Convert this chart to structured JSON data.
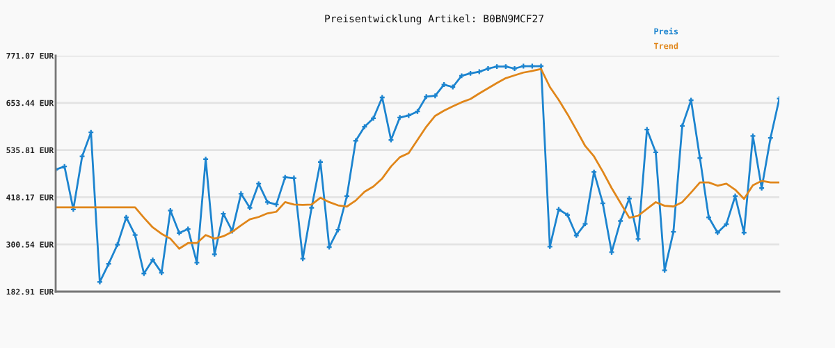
{
  "chart_data": {
    "type": "line",
    "title": "Preisentwicklung Artikel: B0BN9MCF27",
    "categories": [
      null,
      null,
      null,
      null,
      null,
      null,
      null,
      null,
      null,
      null,
      null,
      null,
      null,
      null,
      null,
      null,
      null,
      null,
      null,
      null,
      null,
      null,
      null,
      null,
      null,
      null,
      null,
      null,
      null,
      null,
      null,
      null,
      null,
      null,
      null,
      null,
      null,
      null,
      null,
      null,
      null,
      null,
      null,
      null,
      null,
      null,
      null,
      null,
      null,
      null,
      null,
      null,
      null,
      null,
      null,
      null,
      null,
      null,
      null,
      null,
      null,
      null,
      null,
      null,
      null,
      null,
      null,
      null,
      null,
      null,
      null,
      null,
      null,
      null,
      null,
      null,
      null,
      null,
      null,
      null,
      null,
      null,
      null
    ],
    "series": [
      {
        "name": "Preis",
        "color": "#1c84cf",
        "marker": "cross",
        "values": [
          487,
          495,
          388,
          520,
          580,
          207,
          252,
          300,
          368,
          324,
          228,
          262,
          230,
          385,
          329,
          339,
          255,
          513,
          276,
          377,
          334,
          427,
          392,
          452,
          406,
          400,
          468,
          466,
          265,
          392,
          506,
          294,
          337,
          421,
          559,
          594,
          615,
          667,
          561,
          617,
          622,
          632,
          669,
          671,
          699,
          693,
          721,
          727,
          731,
          739,
          744,
          744,
          739,
          745,
          745,
          745,
          295,
          388,
          374,
          323,
          352,
          481,
          403,
          281,
          359,
          415,
          314,
          587,
          530,
          236,
          332,
          596,
          660,
          516,
          368,
          330,
          351,
          421,
          330,
          571,
          441,
          566,
          664
        ]
      },
      {
        "name": "Trend",
        "color": "#e0861a",
        "values": [
          393,
          393,
          393,
          393,
          393,
          393,
          393,
          393,
          393,
          393,
          367,
          343,
          327,
          315,
          290,
          304,
          304,
          324,
          315,
          321,
          332,
          348,
          363,
          369,
          378,
          382,
          406,
          400,
          399,
          400,
          417,
          406,
          398,
          395,
          410,
          432,
          445,
          465,
          495,
          518,
          528,
          561,
          594,
          621,
          634,
          645,
          655,
          663,
          677,
          690,
          703,
          715,
          722,
          729,
          733,
          738,
          693,
          661,
          625,
          586,
          546,
          520,
          482,
          441,
          404,
          367,
          372,
          389,
          406,
          397,
          395,
          406,
          430,
          455,
          455,
          447,
          452,
          437,
          414,
          448,
          459,
          455,
          455
        ]
      }
    ],
    "ylim": [
      182.91,
      771.07
    ],
    "yticks": [
      {
        "value": 182.91,
        "label": "182.91 EUR"
      },
      {
        "value": 300.54,
        "label": "300.54 EUR"
      },
      {
        "value": 418.17,
        "label": "418.17 EUR"
      },
      {
        "value": 535.81,
        "label": "535.81 EUR"
      },
      {
        "value": 653.44,
        "label": "653.44 EUR"
      },
      {
        "value": 771.07,
        "label": "771.07 EUR"
      }
    ],
    "grid": "y",
    "legend": "top right",
    "tick_labels": "y",
    "line_style": "solid"
  }
}
